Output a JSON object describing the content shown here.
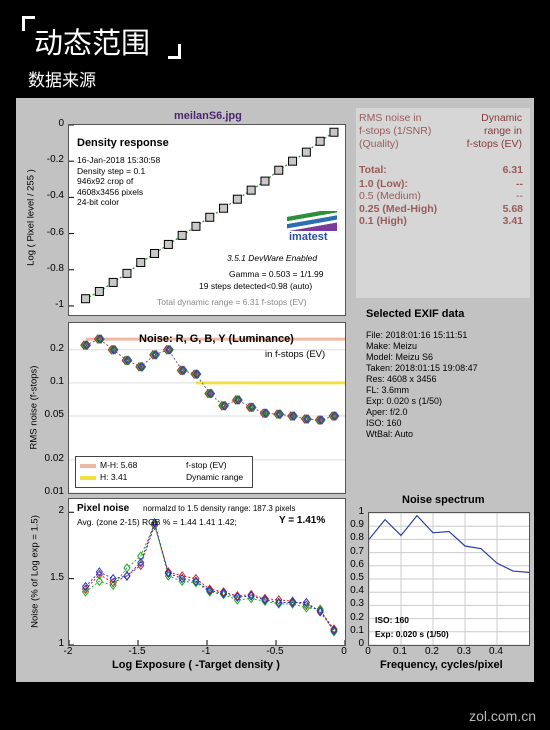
{
  "header": {
    "title": "动态范围",
    "subtitle": "数据来源"
  },
  "watermark": "zol.com.cn",
  "density": {
    "file": "meilanS6.jpg",
    "heading": "Density response",
    "meta": [
      "16-Jan-2018 15:30:58",
      "Density step = 0.1",
      "946x92 crop of",
      "4608x3456 pixels",
      "24-bit color"
    ],
    "logo_version": "3.5.1  DevWare Enabled",
    "logo_name": "imatest",
    "gamma": "Gamma = 0.503 = 1/1.99",
    "steps": "19 steps detected<0.98 (auto)",
    "total": "Total dynamic range = 6.31 f-stops (EV)",
    "ylabel": "Log ( Pixel level / 255 )"
  },
  "rms": {
    "head_left": [
      "RMS noise in",
      "f-stops (1/SNR)",
      "(Quality)"
    ],
    "head_right": [
      "Dynamic",
      "range in",
      "f-stops (EV)"
    ],
    "rows": [
      {
        "label": "Total:",
        "value": "6.31"
      },
      {
        "label": "1.0  (Low):",
        "value": "--"
      },
      {
        "label": "0.5  (Medium)",
        "value": "--"
      },
      {
        "label": "0.25 (Med-High)",
        "value": "5.68"
      },
      {
        "label": "0.1  (High)",
        "value": "3.41"
      }
    ]
  },
  "noise": {
    "heading": "Noise: R, G, B, Y (Luminance)",
    "unit": "in f-stops (EV)",
    "ylabel": "RMS noise (f-stops)",
    "legend": [
      {
        "label": "M-H: 5.68",
        "color": "#f0b8a0"
      },
      {
        "label": "H:    3.41",
        "color": "#f0e040"
      }
    ],
    "legend_note": [
      "f-stop (EV)",
      "Dynamic range"
    ]
  },
  "exif": {
    "heading": "Selected EXIF data",
    "rows": [
      "File:  2018:01:16 15:11:51",
      "Make:  Meizu",
      "Model: Meizu S6",
      "Taken: 2018:01:15 19:08:47",
      "Res:   4608 x 3456",
      "FL:   3.6mm",
      "Exp:  0.020 s  (1/50)",
      "Aper:  f/2.0",
      "ISO:   160",
      "WtBal: Auto"
    ]
  },
  "pixel": {
    "heading": "Pixel noise",
    "norm": "normalzd to 1.5 density range: 187.3 pixels",
    "avg": "Avg. (zone 2-15) RGB % = 1.44  1.41  1.42;",
    "y": "Y = 1.41%",
    "ylabel": "Noise (% of Log exp = 1.5)",
    "xlabel": "Log Exposure ( -Target density )"
  },
  "spectrum": {
    "heading": "Noise spectrum",
    "xlabel": "Frequency, cycles/pixel",
    "iso": "ISO:   160",
    "exp": "Exp:   0.020 s    (1/50)"
  },
  "chart_data": [
    {
      "type": "line",
      "name": "density",
      "x": [
        -1.88,
        -1.78,
        -1.68,
        -1.58,
        -1.48,
        -1.38,
        -1.28,
        -1.18,
        -1.08,
        -0.98,
        -0.88,
        -0.78,
        -0.68,
        -0.58,
        -0.48,
        -0.38,
        -0.28,
        -0.18,
        -0.08
      ],
      "values": [
        -0.96,
        -0.92,
        -0.87,
        -0.82,
        -0.76,
        -0.71,
        -0.66,
        -0.61,
        -0.56,
        -0.51,
        -0.46,
        -0.41,
        -0.36,
        -0.31,
        -0.25,
        -0.2,
        -0.15,
        -0.09,
        -0.04
      ],
      "xlim": [
        -2,
        0
      ],
      "ylim": [
        -1.05,
        0
      ],
      "yticks": [
        0,
        -0.2,
        -0.4,
        -0.6,
        -0.8,
        -1
      ]
    },
    {
      "type": "scatter",
      "name": "rms-noise",
      "x": [
        -1.88,
        -1.78,
        -1.68,
        -1.58,
        -1.48,
        -1.38,
        -1.28,
        -1.18,
        -1.08,
        -0.98,
        -0.88,
        -0.78,
        -0.68,
        -0.58,
        -0.48,
        -0.38,
        -0.28,
        -0.18,
        -0.08
      ],
      "series": [
        {
          "values": [
            0.22,
            0.25,
            0.2,
            0.16,
            0.14,
            0.18,
            0.2,
            0.13,
            0.12,
            0.08,
            0.062,
            0.07,
            0.06,
            0.053,
            0.052,
            0.05,
            0.047,
            0.046,
            0.05
          ]
        }
      ],
      "ylim": [
        0.01,
        0.35
      ],
      "yticks": [
        0.2,
        0.1,
        0.05,
        0.02,
        0.01
      ],
      "thresholds": [
        {
          "label": "M-H",
          "y": 0.25,
          "x_from": -1.88
        },
        {
          "label": "H",
          "y": 0.1,
          "x_from": -1.08
        }
      ]
    },
    {
      "type": "line",
      "name": "pixel-noise",
      "x": [
        -1.88,
        -1.78,
        -1.68,
        -1.58,
        -1.48,
        -1.38,
        -1.28,
        -1.18,
        -1.08,
        -0.98,
        -0.88,
        -0.78,
        -0.68,
        -0.58,
        -0.48,
        -0.38,
        -0.28,
        -0.18,
        -0.08
      ],
      "series": [
        {
          "name": "R",
          "values": [
            1.42,
            1.53,
            1.47,
            1.52,
            1.6,
            1.9,
            1.55,
            1.52,
            1.5,
            1.42,
            1.4,
            1.37,
            1.38,
            1.35,
            1.34,
            1.33,
            1.3,
            1.26,
            1.12
          ],
          "color": "#cc2222"
        },
        {
          "name": "G",
          "values": [
            1.4,
            1.48,
            1.45,
            1.58,
            1.67,
            1.91,
            1.52,
            1.48,
            1.47,
            1.4,
            1.38,
            1.34,
            1.35,
            1.33,
            1.31,
            1.31,
            1.28,
            1.27,
            1.1
          ],
          "color": "#22aa22"
        },
        {
          "name": "B",
          "values": [
            1.44,
            1.55,
            1.5,
            1.52,
            1.62,
            1.92,
            1.54,
            1.5,
            1.48,
            1.41,
            1.39,
            1.36,
            1.37,
            1.34,
            1.32,
            1.32,
            1.32,
            1.25,
            1.11
          ],
          "color": "#2233cc"
        }
      ],
      "xlim": [
        -2,
        0
      ],
      "ylim": [
        1,
        2.1
      ],
      "yticks": [
        1,
        1.5,
        2
      ],
      "xticks": [
        -2,
        -1.5,
        -1,
        -0.5,
        0
      ]
    },
    {
      "type": "line",
      "name": "noise-spectrum",
      "x": [
        0.0,
        0.05,
        0.1,
        0.15,
        0.2,
        0.25,
        0.3,
        0.35,
        0.4,
        0.45,
        0.5
      ],
      "values": [
        0.8,
        0.95,
        0.83,
        0.98,
        0.85,
        0.86,
        0.75,
        0.73,
        0.62,
        0.56,
        0.55
      ],
      "xlim": [
        0,
        0.5
      ],
      "ylim": [
        0,
        1
      ],
      "xticks": [
        0,
        0.1,
        0.2,
        0.3,
        0.4
      ],
      "yticks": [
        0,
        0.1,
        0.2,
        0.3,
        0.4,
        0.5,
        0.6,
        0.7,
        0.8,
        0.9,
        1
      ]
    }
  ]
}
